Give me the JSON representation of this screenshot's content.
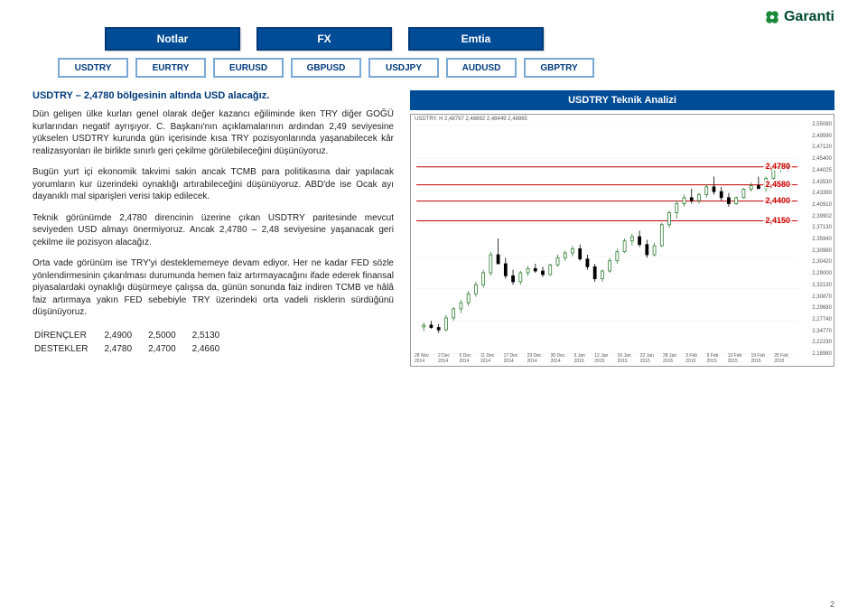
{
  "brand": {
    "name": "Garanti"
  },
  "tabs_main": [
    "Notlar",
    "FX",
    "Emtia"
  ],
  "tabs_pairs": [
    "USDTRY",
    "EURTRY",
    "EURUSD",
    "GBPUSD",
    "USDJPY",
    "AUDUSD",
    "GBPTRY"
  ],
  "headline": "USDTRY – 2,4780 bölgesinin altında USD alacağız.",
  "paragraphs": [
    "Dün gelişen ülke kurları genel olarak değer kazancı eğiliminde iken TRY diğer GOĞÜ kurlarından negatif ayrışıyor. C. Başkanı'nın açıklamalarının ardından 2,49 seviyesine yükselen USDTRY kurunda gün içerisinde kısa TRY pozisyonlarında yaşanabilecek kâr realizasyonları ile birlikte sınırlı geri çekilme görülebileceğini düşünüyoruz.",
    "Bugün yurt içi ekonomik takvimi sakin ancak TCMB para politikasına dair yapılacak yorumların kur üzerindeki oynaklığı artırabileceğini düşünüyoruz. ABD'de ise Ocak ayı dayanıklı mal siparişleri verisi takip edilecek.",
    "Teknik görünümde 2,4780 direncinin üzerine çıkan USDTRY paritesinde mevcut seviyeden USD almayı önermiyoruz. Ancak 2,4780 – 2,48 seviyesine yaşanacak geri çekilme ile pozisyon alacağız.",
    "Orta vade görünüm ise TRY'yi desteklememeye devam ediyor. Her ne kadar FED sözle yönlendirmesinin çıkarılması durumunda hemen faiz artırmayacağını ifade ederek finansal piyasalardaki oynaklığı düşürmeye çalışsa da, günün sonunda faiz indiren TCMB ve hâlâ faiz artırmaya yakın FED sebebiyle TRY üzerindeki orta vadeli risklerin sürdüğünü düşünüyoruz."
  ],
  "sr": {
    "label_res": "DİRENÇLER",
    "label_sup": "DESTEKLER",
    "res": [
      "2,4900",
      "2,5000",
      "2,5130"
    ],
    "sup": [
      "2,4780",
      "2,4700",
      "2,4660"
    ]
  },
  "chart": {
    "title": "USDTRY Teknik Analizi",
    "meta": "USDTRY. H 2,48797 2,48892 2,48449 2,48865",
    "ylim": [
      2.18,
      2.56
    ],
    "yticks": [
      "2,55080",
      "2,49590",
      "2,47120",
      "2,45400",
      "2,44025",
      "2,43530",
      "2,43390",
      "2,40910",
      "2,39902",
      "2,37130",
      "2,35940",
      "2,30980",
      "2,30420",
      "2,29000",
      "2,32130",
      "2,30870",
      "2,29680",
      "2,27740",
      "2,34770",
      "2,22230",
      "2,18980"
    ],
    "xticks": [
      "28 Nov 2014",
      "2 Dec 2014",
      "5 Dec 2014",
      "11 Dec 2014",
      "17 Dec 2014",
      "23 Dec 2014",
      "30 Dec 2014",
      "6 Jan 2015",
      "12 Jan 2015",
      "16 Jan 2015",
      "22 Jan 2015",
      "28 Jan 2015",
      "3 Feb 2015",
      "9 Feb 2015",
      "13 Feb 2015",
      "19 Feb 2015",
      "25 Feb 2015"
    ],
    "levels": [
      {
        "label": "2,4780",
        "y": 58
      },
      {
        "label": "2,4580",
        "y": 78
      },
      {
        "label": "2,4400",
        "y": 96
      },
      {
        "label": "2,4150",
        "y": 118
      }
    ],
    "candles": [
      {
        "x": 8,
        "o": 2.225,
        "h": 2.232,
        "l": 2.218,
        "c": 2.228,
        "up": true
      },
      {
        "x": 16,
        "o": 2.228,
        "h": 2.235,
        "l": 2.222,
        "c": 2.224,
        "up": false
      },
      {
        "x": 24,
        "o": 2.224,
        "h": 2.23,
        "l": 2.215,
        "c": 2.22,
        "up": false
      },
      {
        "x": 32,
        "o": 2.22,
        "h": 2.245,
        "l": 2.218,
        "c": 2.24,
        "up": true
      },
      {
        "x": 40,
        "o": 2.24,
        "h": 2.258,
        "l": 2.235,
        "c": 2.255,
        "up": true
      },
      {
        "x": 48,
        "o": 2.255,
        "h": 2.27,
        "l": 2.248,
        "c": 2.265,
        "up": true
      },
      {
        "x": 56,
        "o": 2.265,
        "h": 2.285,
        "l": 2.26,
        "c": 2.28,
        "up": true
      },
      {
        "x": 64,
        "o": 2.28,
        "h": 2.3,
        "l": 2.275,
        "c": 2.295,
        "up": true
      },
      {
        "x": 72,
        "o": 2.295,
        "h": 2.32,
        "l": 2.29,
        "c": 2.315,
        "up": true
      },
      {
        "x": 80,
        "o": 2.315,
        "h": 2.35,
        "l": 2.31,
        "c": 2.345,
        "up": true
      },
      {
        "x": 88,
        "o": 2.345,
        "h": 2.372,
        "l": 2.335,
        "c": 2.33,
        "up": false
      },
      {
        "x": 96,
        "o": 2.33,
        "h": 2.34,
        "l": 2.305,
        "c": 2.31,
        "up": false
      },
      {
        "x": 104,
        "o": 2.31,
        "h": 2.32,
        "l": 2.295,
        "c": 2.3,
        "up": false
      },
      {
        "x": 112,
        "o": 2.3,
        "h": 2.318,
        "l": 2.295,
        "c": 2.315,
        "up": true
      },
      {
        "x": 120,
        "o": 2.315,
        "h": 2.326,
        "l": 2.31,
        "c": 2.322,
        "up": true
      },
      {
        "x": 128,
        "o": 2.322,
        "h": 2.33,
        "l": 2.315,
        "c": 2.318,
        "up": false
      },
      {
        "x": 136,
        "o": 2.318,
        "h": 2.325,
        "l": 2.308,
        "c": 2.312,
        "up": false
      },
      {
        "x": 144,
        "o": 2.312,
        "h": 2.33,
        "l": 2.31,
        "c": 2.328,
        "up": true
      },
      {
        "x": 152,
        "o": 2.328,
        "h": 2.345,
        "l": 2.325,
        "c": 2.34,
        "up": true
      },
      {
        "x": 160,
        "o": 2.34,
        "h": 2.352,
        "l": 2.335,
        "c": 2.348,
        "up": true
      },
      {
        "x": 168,
        "o": 2.348,
        "h": 2.36,
        "l": 2.342,
        "c": 2.355,
        "up": true
      },
      {
        "x": 176,
        "o": 2.355,
        "h": 2.362,
        "l": 2.335,
        "c": 2.338,
        "up": false
      },
      {
        "x": 184,
        "o": 2.338,
        "h": 2.345,
        "l": 2.32,
        "c": 2.325,
        "up": false
      },
      {
        "x": 192,
        "o": 2.325,
        "h": 2.33,
        "l": 2.3,
        "c": 2.305,
        "up": false
      },
      {
        "x": 200,
        "o": 2.305,
        "h": 2.32,
        "l": 2.3,
        "c": 2.318,
        "up": true
      },
      {
        "x": 208,
        "o": 2.318,
        "h": 2.34,
        "l": 2.315,
        "c": 2.335,
        "up": true
      },
      {
        "x": 216,
        "o": 2.335,
        "h": 2.355,
        "l": 2.33,
        "c": 2.35,
        "up": true
      },
      {
        "x": 224,
        "o": 2.35,
        "h": 2.372,
        "l": 2.348,
        "c": 2.368,
        "up": true
      },
      {
        "x": 232,
        "o": 2.368,
        "h": 2.38,
        "l": 2.36,
        "c": 2.375,
        "up": true
      },
      {
        "x": 240,
        "o": 2.375,
        "h": 2.385,
        "l": 2.358,
        "c": 2.362,
        "up": false
      },
      {
        "x": 248,
        "o": 2.362,
        "h": 2.37,
        "l": 2.34,
        "c": 2.345,
        "up": false
      },
      {
        "x": 256,
        "o": 2.345,
        "h": 2.365,
        "l": 2.342,
        "c": 2.36,
        "up": true
      },
      {
        "x": 264,
        "o": 2.36,
        "h": 2.398,
        "l": 2.358,
        "c": 2.395,
        "up": true
      },
      {
        "x": 272,
        "o": 2.395,
        "h": 2.418,
        "l": 2.39,
        "c": 2.415,
        "up": true
      },
      {
        "x": 280,
        "o": 2.415,
        "h": 2.435,
        "l": 2.405,
        "c": 2.43,
        "up": true
      },
      {
        "x": 288,
        "o": 2.43,
        "h": 2.445,
        "l": 2.425,
        "c": 2.44,
        "up": true
      },
      {
        "x": 296,
        "o": 2.44,
        "h": 2.455,
        "l": 2.43,
        "c": 2.435,
        "up": false
      },
      {
        "x": 304,
        "o": 2.435,
        "h": 2.448,
        "l": 2.43,
        "c": 2.445,
        "up": true
      },
      {
        "x": 312,
        "o": 2.445,
        "h": 2.462,
        "l": 2.44,
        "c": 2.458,
        "up": true
      },
      {
        "x": 320,
        "o": 2.458,
        "h": 2.475,
        "l": 2.445,
        "c": 2.45,
        "up": false
      },
      {
        "x": 328,
        "o": 2.45,
        "h": 2.458,
        "l": 2.435,
        "c": 2.44,
        "up": false
      },
      {
        "x": 336,
        "o": 2.44,
        "h": 2.448,
        "l": 2.425,
        "c": 2.43,
        "up": false
      },
      {
        "x": 344,
        "o": 2.43,
        "h": 2.442,
        "l": 2.428,
        "c": 2.44,
        "up": true
      },
      {
        "x": 352,
        "o": 2.44,
        "h": 2.456,
        "l": 2.438,
        "c": 2.454,
        "up": true
      },
      {
        "x": 360,
        "o": 2.454,
        "h": 2.465,
        "l": 2.45,
        "c": 2.46,
        "up": true
      },
      {
        "x": 368,
        "o": 2.46,
        "h": 2.475,
        "l": 2.455,
        "c": 2.455,
        "up": false
      },
      {
        "x": 376,
        "o": 2.455,
        "h": 2.475,
        "l": 2.45,
        "c": 2.472,
        "up": true
      },
      {
        "x": 384,
        "o": 2.472,
        "h": 2.49,
        "l": 2.47,
        "c": 2.488,
        "up": true
      },
      {
        "x": 392,
        "o": 2.488,
        "h": 2.498,
        "l": 2.482,
        "c": 2.492,
        "up": true
      },
      {
        "x": 400,
        "o": 2.492,
        "h": 2.498,
        "l": 2.484,
        "c": 2.489,
        "up": false
      }
    ],
    "level_line_color": "#c00000",
    "up_color": "#2e7d32",
    "down_color": "#000000",
    "bg": "#ffffff",
    "grid_color": "#eeeeee"
  },
  "page_number": "2"
}
